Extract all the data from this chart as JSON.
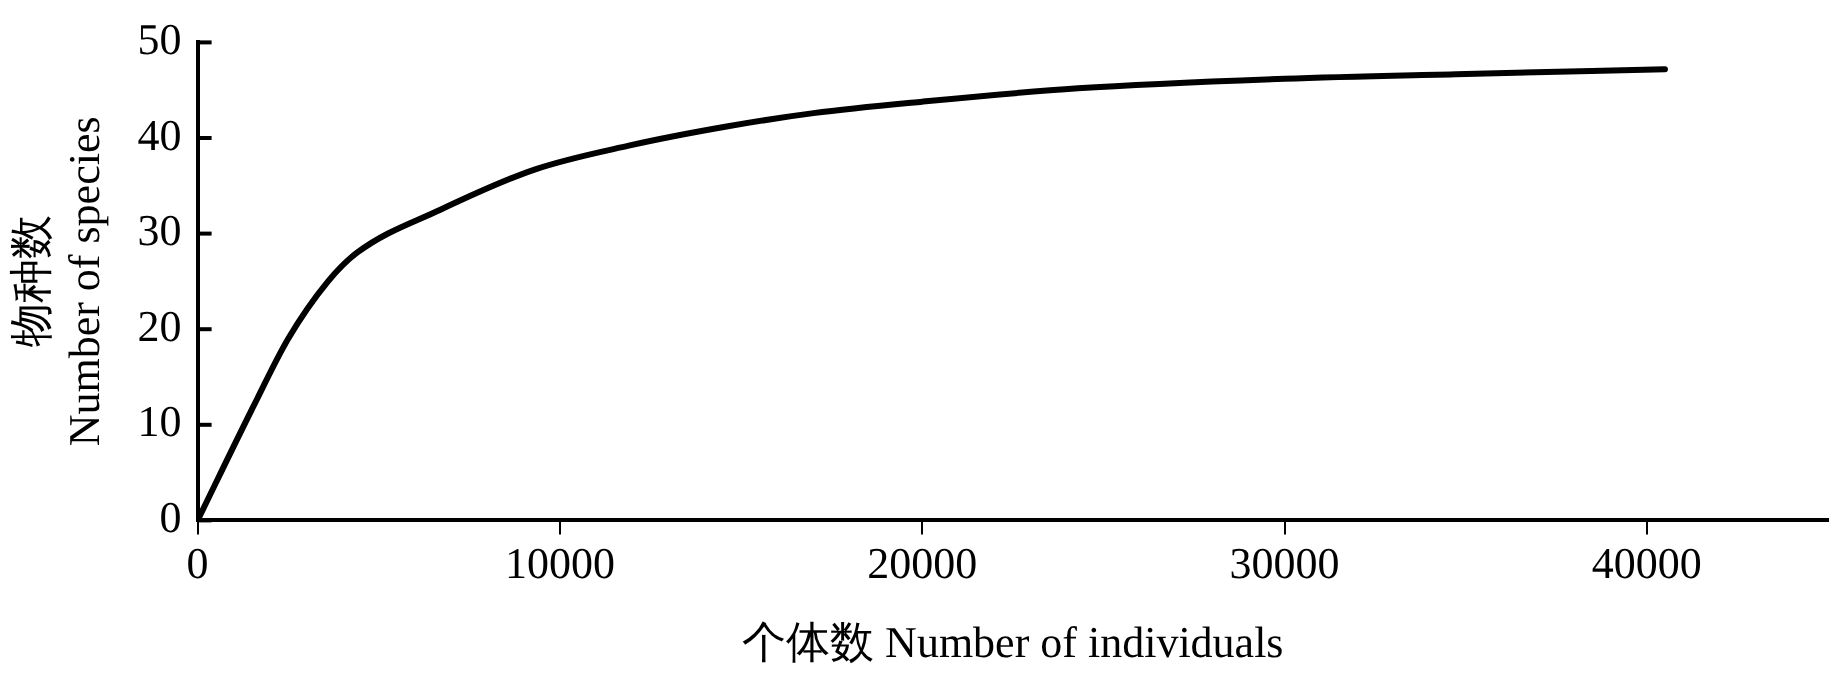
{
  "chart_data": {
    "type": "line",
    "xlabel": "个体数 Number of individuals",
    "ylabel": "物种数\nNumber of species",
    "series": [
      {
        "color": "#000000",
        "x": [
          0,
          1550,
          2500,
          3600,
          4400,
          6700,
          9300,
          11900,
          14600,
          17000,
          20000,
          24300,
          30000,
          35000,
          40500
        ],
        "values": [
          0,
          12,
          19,
          25,
          28,
          32.5,
          36.7,
          39.2,
          41.2,
          42.6,
          43.8,
          45.2,
          46.2,
          46.7,
          47.2
        ]
      }
    ],
    "xlim": [
      0,
      45000
    ],
    "xticks": [
      0,
      10000,
      20000,
      30000,
      40000
    ],
    "ylim": [
      0,
      50
    ],
    "yticks": [
      0,
      10,
      20,
      30,
      40,
      50
    ],
    "grid": false,
    "legend": false,
    "marker": "none",
    "line_style": "solid"
  }
}
